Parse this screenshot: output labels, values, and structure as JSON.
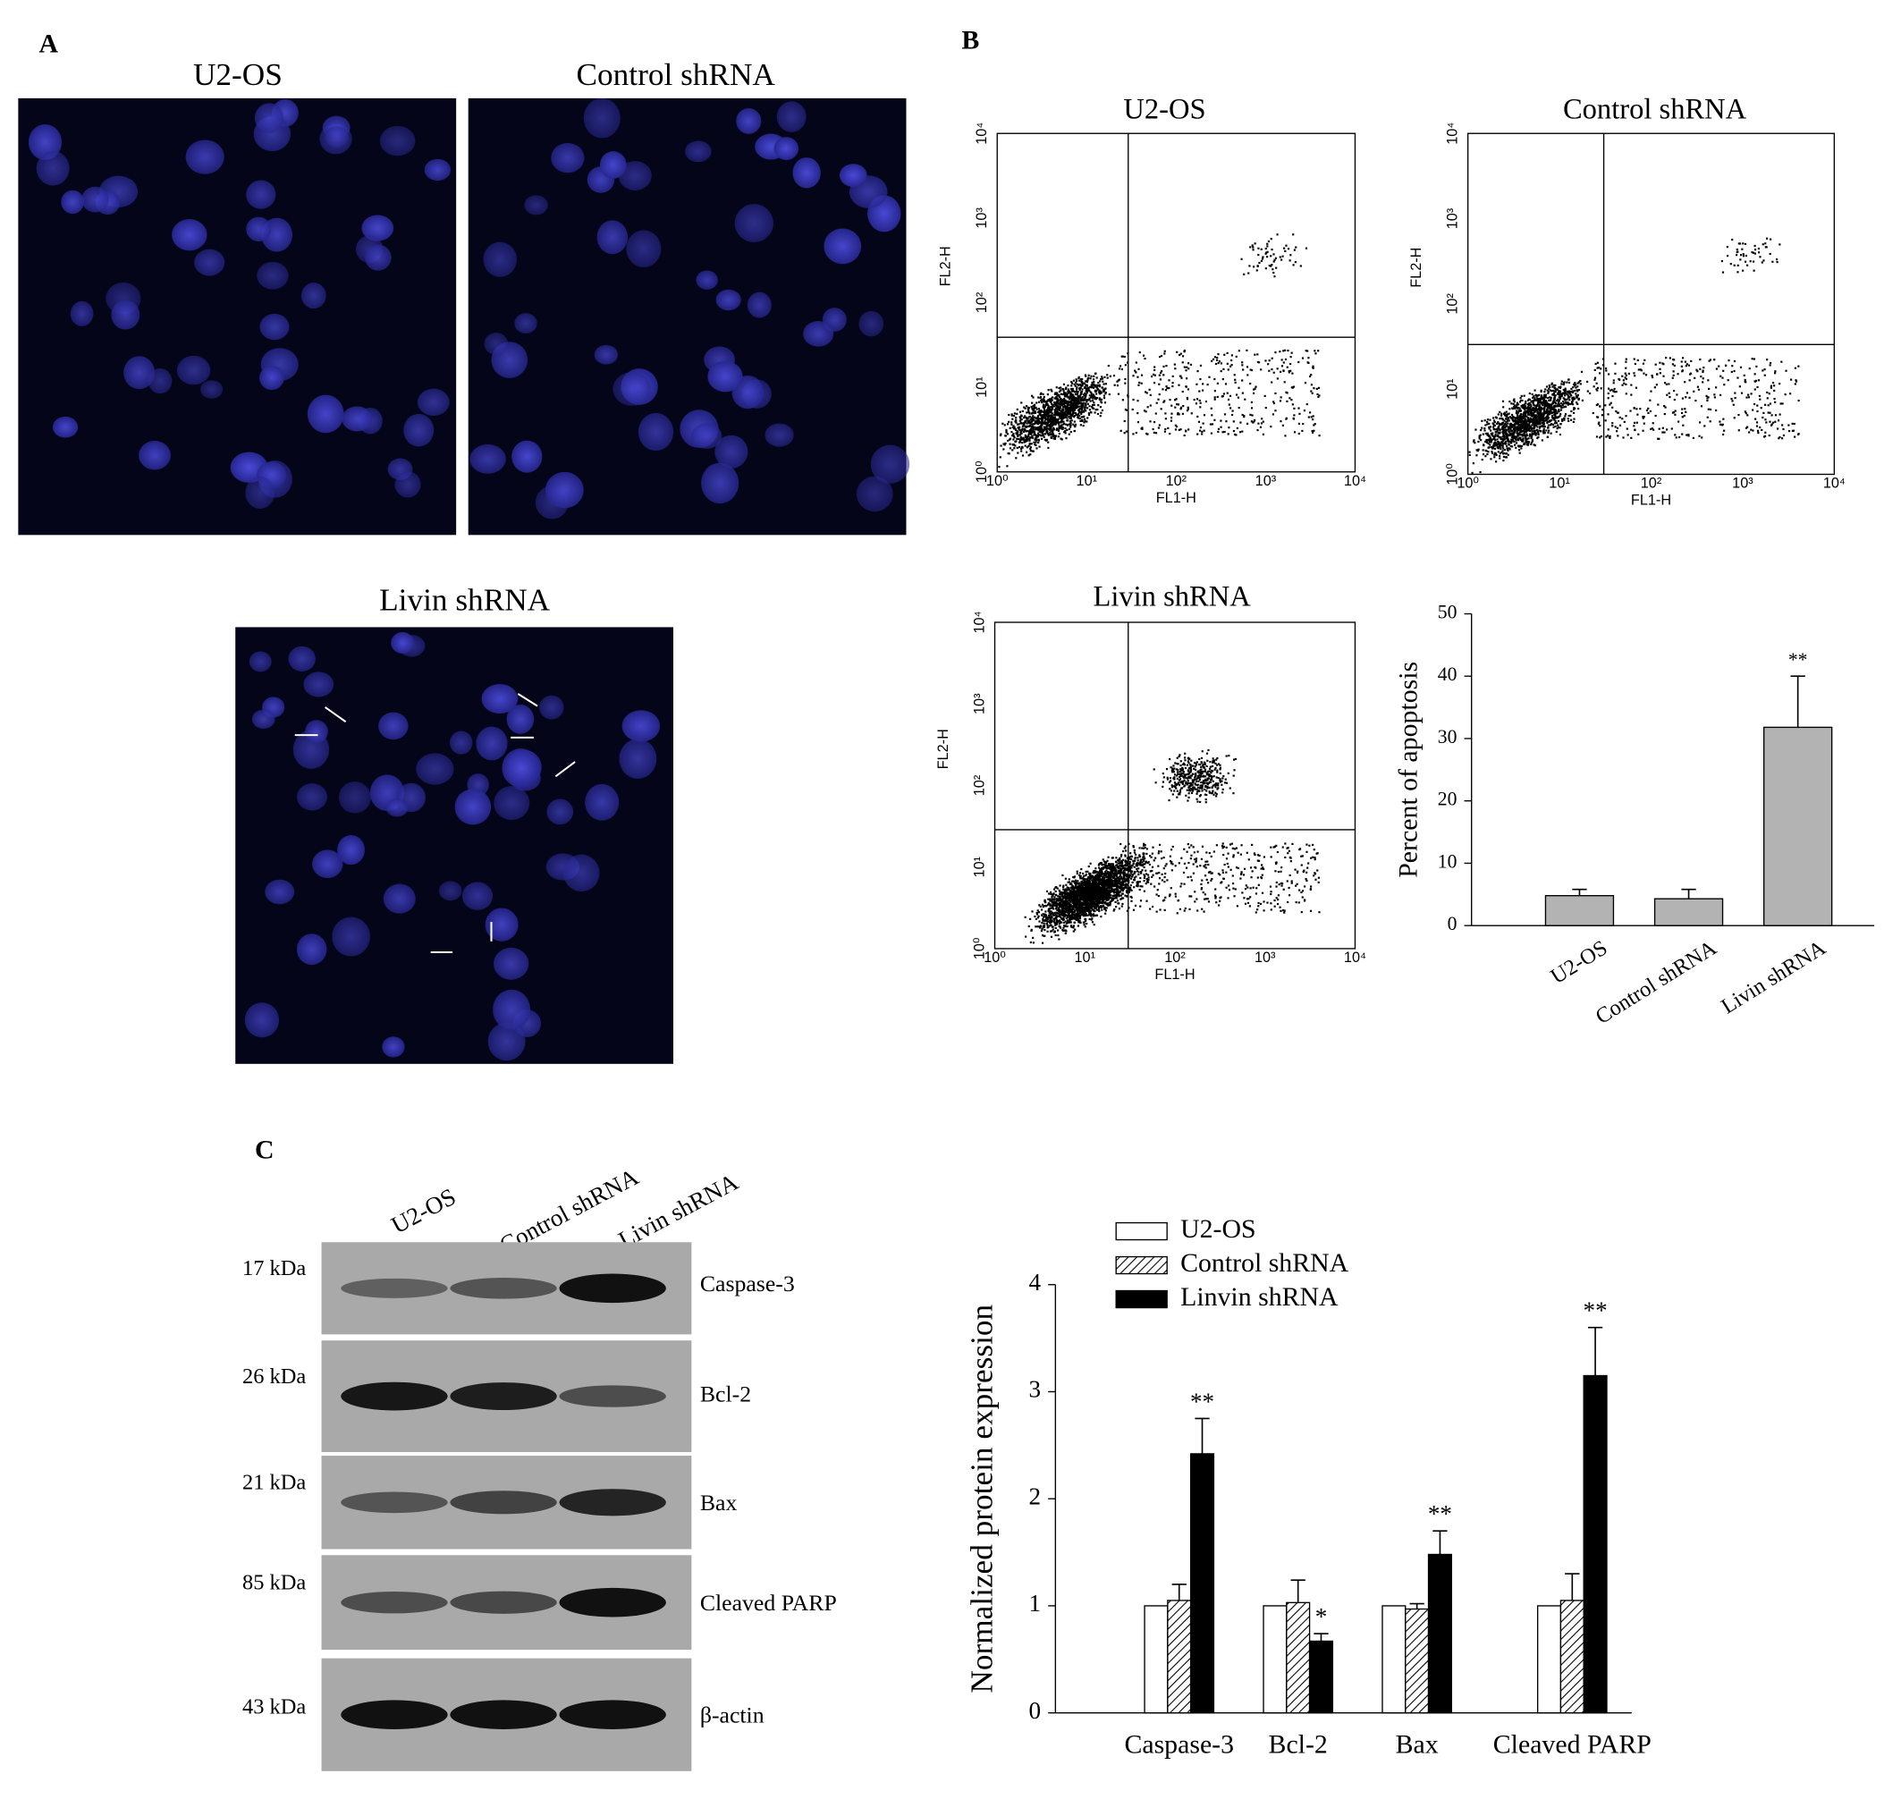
{
  "panel_labels": [
    "A",
    "B",
    "C"
  ],
  "microscopy": [
    {
      "title": "U2-OS"
    },
    {
      "title": "Control shRNA"
    },
    {
      "title": "Livin shRNA"
    }
  ],
  "flow_ticks": [
    "10⁰",
    "10¹",
    "10²",
    "10³",
    "10⁴"
  ],
  "flow_panels": [
    {
      "title": "U2-OS",
      "x_label": "FL1-H",
      "y_label": "FL2-H"
    },
    {
      "title": "Control shRNA",
      "x_label": "FL1-H",
      "y_label": "FL2-H"
    },
    {
      "title": "Livin shRNA",
      "x_label": "FL1-H",
      "y_label": "FL2-H"
    }
  ],
  "western_blot": {
    "lanes": [
      "U2-OS",
      "Control shRNA",
      "Livin shRNA"
    ],
    "rows": [
      {
        "size": "17 kDa",
        "protein": "Caspase-3"
      },
      {
        "size": "26 kDa",
        "protein": "Bcl-2"
      },
      {
        "size": "21 kDa",
        "protein": "Bax"
      },
      {
        "size": "85 kDa",
        "protein": "Cleaved PARP"
      },
      {
        "size": "43 kDa",
        "protein": "β-actin"
      }
    ]
  },
  "chart_data": [
    {
      "type": "bar",
      "y_label": "Percent of apoptosis",
      "categories": [
        "U2-OS",
        "Control shRNA",
        "Livin shRNA"
      ],
      "values": [
        4.8,
        4.3,
        31.8
      ],
      "errors": [
        1.0,
        1.5,
        8.2
      ],
      "significance": [
        null,
        null,
        "**"
      ],
      "color": "#b3b3b3",
      "ylim": [
        0,
        50
      ],
      "yticks": [
        0,
        10,
        20,
        30,
        40,
        50
      ]
    },
    {
      "type": "bar",
      "y_label": "Normalized protein expression",
      "categories": [
        "Caspase-3",
        "Bcl-2",
        "Bax",
        "Cleaved PARP"
      ],
      "series": [
        {
          "name": "U2-OS",
          "color": "#ffffff",
          "values": [
            1,
            1,
            1,
            1
          ]
        },
        {
          "name": "Control shRNA",
          "color": "#ffffff",
          "hatch": true,
          "values": [
            1.05,
            1.03,
            0.97,
            1.05
          ],
          "errors": [
            0.15,
            0.21,
            0.05,
            0.25
          ]
        },
        {
          "name": "Linvin shRNA",
          "color": "#000000",
          "values": [
            2.42,
            0.67,
            1.48,
            3.15
          ],
          "errors": [
            0.33,
            0.07,
            0.22,
            0.45
          ],
          "significance": [
            "**",
            "*",
            "**",
            "**"
          ]
        }
      ],
      "ylim": [
        0,
        4
      ],
      "yticks": [
        0,
        1,
        2,
        3,
        4
      ]
    }
  ]
}
